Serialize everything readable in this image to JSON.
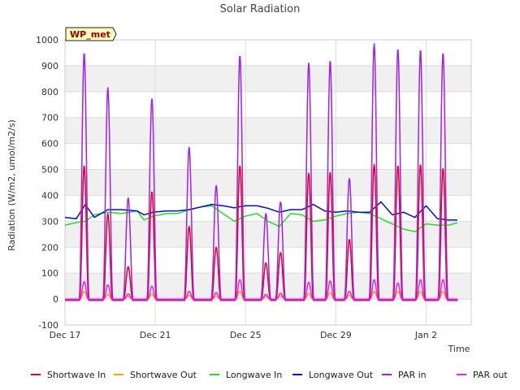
{
  "chart_data": {
    "type": "line",
    "title": "Solar Radiation",
    "site_badge": "WP_met",
    "xlabel": "Time",
    "ylabel": "Radiation (W/m2, umol/m2/s)",
    "x_unit": "days since Dec 17",
    "xlim": [
      0,
      18
    ],
    "ylim": [
      -100,
      1000
    ],
    "yticks": [
      -100,
      0,
      100,
      200,
      300,
      400,
      500,
      600,
      700,
      800,
      900,
      1000
    ],
    "xticks": [
      {
        "label": "Dec 17",
        "value": 0
      },
      {
        "label": "Dec 21",
        "value": 4
      },
      {
        "label": "Dec 25",
        "value": 8
      },
      {
        "label": "Dec 29",
        "value": 12
      },
      {
        "label": "Jan 2",
        "value": 16
      }
    ],
    "grid": true,
    "legend_position": "bottom",
    "daily_peaks": {
      "days": [
        0.85,
        1.9,
        2.8,
        3.85,
        5.5,
        6.7,
        7.75,
        8.9,
        9.55,
        10.8,
        11.75,
        12.6,
        13.7,
        14.75,
        15.75,
        16.75
      ],
      "par_in": [
        950,
        815,
        390,
        775,
        585,
        438,
        940,
        330,
        375,
        910,
        920,
        465,
        985,
        965,
        962,
        950
      ],
      "shortwave_in": [
        515,
        330,
        125,
        415,
        280,
        200,
        515,
        140,
        180,
        485,
        490,
        230,
        520,
        515,
        520,
        505
      ],
      "shortwave_out": [
        30,
        18,
        10,
        20,
        15,
        12,
        30,
        10,
        12,
        22,
        25,
        15,
        30,
        30,
        30,
        30
      ],
      "par_out": [
        68,
        55,
        20,
        50,
        30,
        25,
        75,
        18,
        22,
        65,
        70,
        30,
        75,
        62,
        75,
        75
      ]
    },
    "series": [
      {
        "name": "Shortwave In",
        "color": "#e8001c"
      },
      {
        "name": "Shortwave Out",
        "color": "#f5a300"
      },
      {
        "name": "Longwave In",
        "color": "#22e01e"
      },
      {
        "name": "Longwave Out",
        "color": "#0010c8"
      },
      {
        "name": "PAR in",
        "color": "#a020f0"
      },
      {
        "name": "PAR out",
        "color": "#f020e0"
      }
    ],
    "longwave_out_profile": {
      "x": [
        0.0,
        0.5,
        0.9,
        1.3,
        1.9,
        2.5,
        3.2,
        3.5,
        3.9,
        4.5,
        5.0,
        5.5,
        6.0,
        6.5,
        7.0,
        7.5,
        8.0,
        8.5,
        9.0,
        9.5,
        10.0,
        10.5,
        11.0,
        11.5,
        12.0,
        12.5,
        13.0,
        13.5,
        14.0,
        14.5,
        15.0,
        15.5,
        16.0,
        16.5,
        17.0,
        17.4
      ],
      "y": [
        315,
        310,
        365,
        315,
        345,
        345,
        340,
        325,
        335,
        340,
        340,
        345,
        355,
        365,
        360,
        352,
        360,
        360,
        350,
        335,
        345,
        345,
        365,
        340,
        335,
        340,
        335,
        335,
        375,
        325,
        335,
        315,
        360,
        310,
        305,
        305
      ]
    },
    "longwave_in_profile": {
      "x": [
        0.0,
        0.5,
        0.9,
        1.3,
        1.9,
        2.5,
        3.2,
        3.5,
        3.9,
        4.5,
        5.0,
        5.5,
        6.0,
        6.5,
        7.0,
        7.5,
        8.0,
        8.5,
        9.0,
        9.5,
        10.0,
        10.5,
        11.0,
        11.5,
        12.0,
        12.5,
        13.0,
        13.5,
        14.0,
        14.5,
        15.0,
        15.5,
        16.0,
        16.5,
        17.0,
        17.4
      ],
      "y": [
        285,
        295,
        300,
        325,
        335,
        330,
        340,
        305,
        320,
        330,
        330,
        345,
        355,
        360,
        330,
        300,
        320,
        330,
        300,
        280,
        330,
        325,
        300,
        305,
        320,
        330,
        335,
        330,
        310,
        290,
        270,
        260,
        290,
        285,
        285,
        295
      ]
    }
  }
}
